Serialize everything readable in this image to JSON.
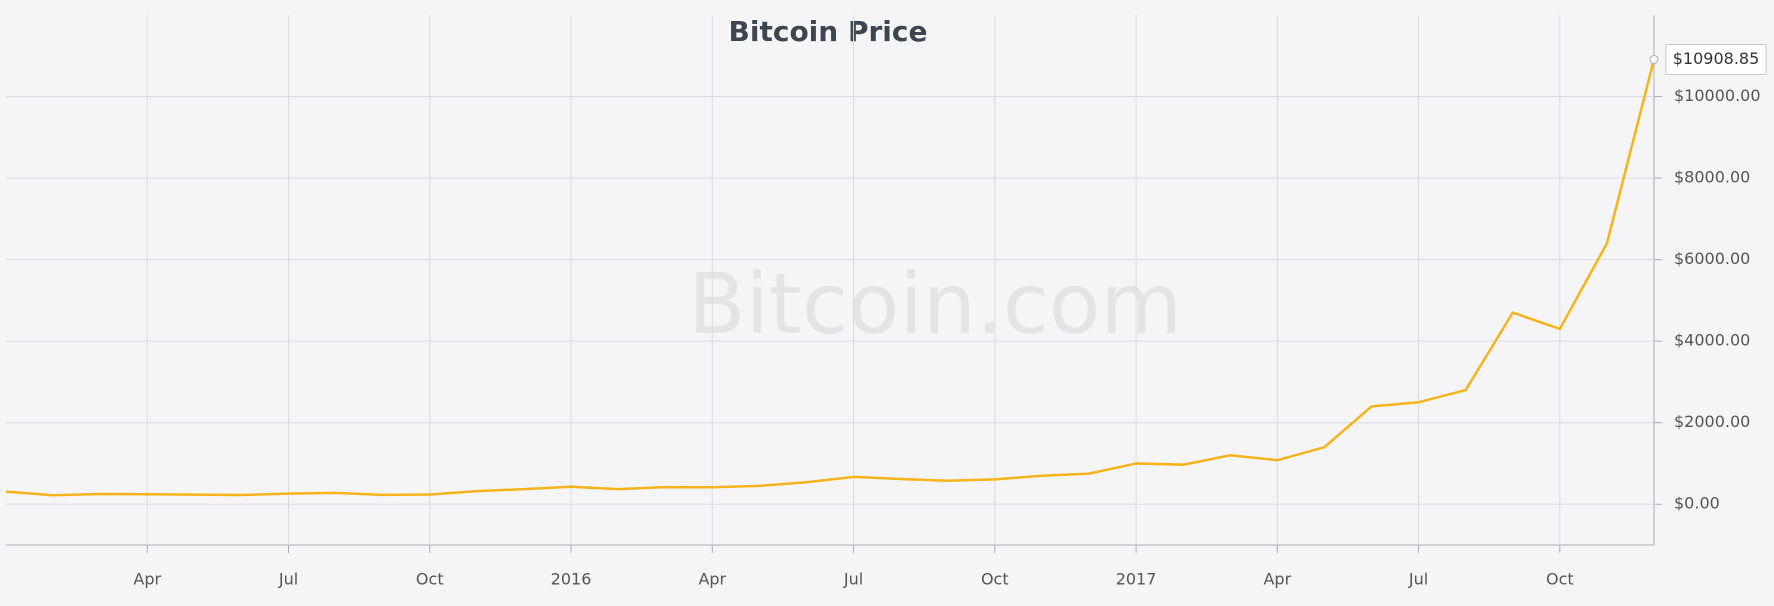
{
  "chart_data": {
    "type": "line",
    "title": "Bitcoin Price",
    "watermark": "Bitcoin.com",
    "x": [
      "2015-01",
      "2015-02",
      "2015-03",
      "2015-04",
      "2015-05",
      "2015-06",
      "2015-07",
      "2015-08",
      "2015-09",
      "2015-10",
      "2015-11",
      "2015-12",
      "2016-01",
      "2016-02",
      "2016-03",
      "2016-04",
      "2016-05",
      "2016-06",
      "2016-07",
      "2016-08",
      "2016-09",
      "2016-10",
      "2016-11",
      "2016-12",
      "2017-01",
      "2017-02",
      "2017-03",
      "2017-04",
      "2017-05",
      "2017-06",
      "2017-07",
      "2017-08",
      "2017-09",
      "2017-10",
      "2017-11",
      "2017-12"
    ],
    "series": [
      {
        "name": "Bitcoin Price",
        "color": "#f7b31b",
        "values": [
          310,
          220,
          250,
          245,
          235,
          225,
          260,
          280,
          230,
          240,
          320,
          370,
          430,
          370,
          420,
          415,
          450,
          540,
          670,
          620,
          575,
          610,
          700,
          750,
          1000,
          970,
          1200,
          1080,
          1400,
          2400,
          2500,
          2800,
          4700,
          4300,
          6400,
          10908.85
        ],
        "value_labels": [
          null,
          null,
          null,
          null,
          null,
          null,
          null,
          null,
          null,
          null,
          null,
          null,
          null,
          null,
          null,
          null,
          null,
          null,
          null,
          null,
          null,
          null,
          null,
          null,
          null,
          null,
          null,
          null,
          null,
          null,
          null,
          null,
          null,
          null,
          null,
          "$10908.85"
        ]
      }
    ],
    "xlim": [
      "2015-01",
      "2017-12"
    ],
    "xticks": [
      {
        "value": "2015-04",
        "label": "Apr"
      },
      {
        "value": "2015-07",
        "label": "Jul"
      },
      {
        "value": "2015-10",
        "label": "Oct"
      },
      {
        "value": "2016-01",
        "label": "2016"
      },
      {
        "value": "2016-04",
        "label": "Apr"
      },
      {
        "value": "2016-07",
        "label": "Jul"
      },
      {
        "value": "2016-10",
        "label": "Oct"
      },
      {
        "value": "2017-01",
        "label": "2017"
      },
      {
        "value": "2017-04",
        "label": "Apr"
      },
      {
        "value": "2017-07",
        "label": "Jul"
      },
      {
        "value": "2017-10",
        "label": "Oct"
      }
    ],
    "ylim": [
      -1000,
      12000
    ],
    "yticks": [
      {
        "value": 0,
        "label": "$0.00"
      },
      {
        "value": 2000,
        "label": "$2000.00"
      },
      {
        "value": 4000,
        "label": "$4000.00"
      },
      {
        "value": 6000,
        "label": "$6000.00"
      },
      {
        "value": 8000,
        "label": "$8000.00"
      },
      {
        "value": 10000,
        "label": "$10000.00"
      }
    ],
    "grid": true
  }
}
